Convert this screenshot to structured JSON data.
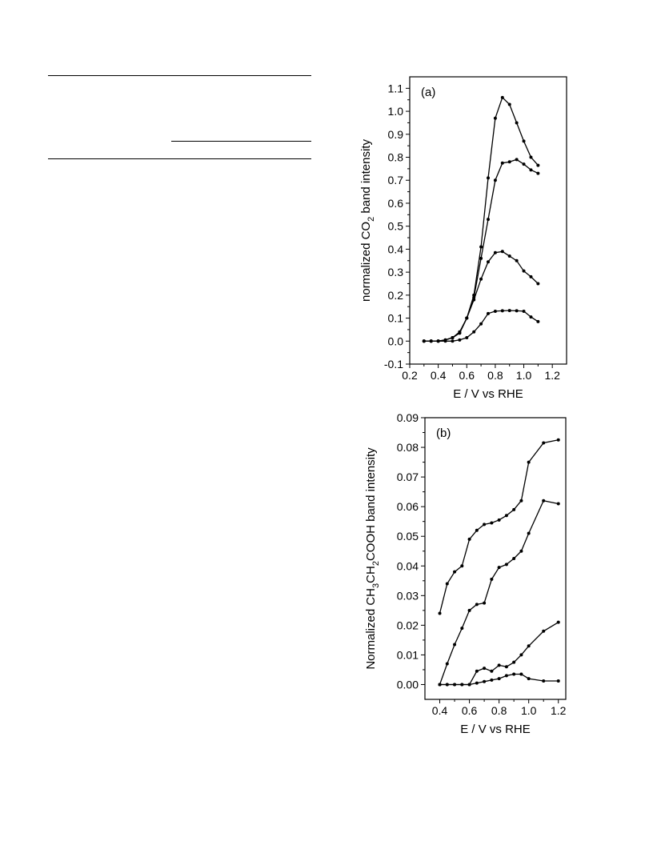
{
  "chart_data": [
    {
      "type": "line",
      "panel_label": "(a)",
      "xlabel": "E / V vs RHE",
      "ylabel_parts": [
        "normalized CO",
        "2",
        " band intensity"
      ],
      "xlim": [
        0.2,
        1.3
      ],
      "ylim": [
        -0.1,
        1.15
      ],
      "xticks": [
        0.2,
        0.4,
        0.6,
        0.8,
        1.0,
        1.2
      ],
      "xtick_labels": [
        "0.2",
        "0.4",
        "0.6",
        "0.8",
        "1.0",
        "1.2"
      ],
      "yticks": [
        -0.1,
        0.0,
        0.1,
        0.2,
        0.3,
        0.4,
        0.5,
        0.6,
        0.7,
        0.8,
        0.9,
        1.0,
        1.1
      ],
      "ytick_labels": [
        "-0.1",
        "0.0",
        "0.1",
        "0.2",
        "0.3",
        "0.4",
        "0.5",
        "0.6",
        "0.7",
        "0.8",
        "0.9",
        "1.0",
        "1.1"
      ],
      "grid": false,
      "series": [
        {
          "x": [
            0.3,
            0.35,
            0.4,
            0.45,
            0.5,
            0.55,
            0.6,
            0.65,
            0.7,
            0.75,
            0.8,
            0.85,
            0.9,
            0.95,
            1.0,
            1.05,
            1.1
          ],
          "y": [
            0.0,
            0.0,
            0.0,
            0.005,
            0.015,
            0.04,
            0.1,
            0.2,
            0.41,
            0.71,
            0.97,
            1.06,
            1.03,
            0.95,
            0.87,
            0.8,
            0.765
          ]
        },
        {
          "x": [
            0.3,
            0.35,
            0.4,
            0.45,
            0.5,
            0.55,
            0.6,
            0.65,
            0.7,
            0.75,
            0.8,
            0.85,
            0.9,
            0.95,
            1.0,
            1.05,
            1.1
          ],
          "y": [
            0.0,
            0.0,
            0.0,
            0.005,
            0.015,
            0.035,
            0.1,
            0.19,
            0.36,
            0.53,
            0.7,
            0.775,
            0.78,
            0.79,
            0.77,
            0.745,
            0.73
          ]
        },
        {
          "x": [
            0.3,
            0.35,
            0.4,
            0.45,
            0.5,
            0.55,
            0.6,
            0.65,
            0.7,
            0.75,
            0.8,
            0.85,
            0.9,
            0.95,
            1.0,
            1.05,
            1.1
          ],
          "y": [
            0.0,
            0.0,
            0.0,
            0.005,
            0.015,
            0.035,
            0.1,
            0.18,
            0.27,
            0.345,
            0.385,
            0.39,
            0.37,
            0.35,
            0.305,
            0.28,
            0.25
          ]
        },
        {
          "x": [
            0.3,
            0.35,
            0.4,
            0.45,
            0.5,
            0.55,
            0.6,
            0.65,
            0.7,
            0.75,
            0.8,
            0.85,
            0.9,
            0.95,
            1.0,
            1.05,
            1.1
          ],
          "y": [
            0.0,
            0.0,
            0.0,
            0.0,
            0.0,
            0.005,
            0.015,
            0.04,
            0.075,
            0.12,
            0.13,
            0.132,
            0.133,
            0.132,
            0.13,
            0.105,
            0.085
          ]
        }
      ]
    },
    {
      "type": "line",
      "panel_label": "(b)",
      "xlabel": "E / V vs RHE",
      "ylabel_parts": [
        "Normalized CH",
        "3",
        "CH",
        "2",
        "COOH  band intensity"
      ],
      "xlim": [
        0.3,
        1.25
      ],
      "ylim": [
        -0.005,
        0.09
      ],
      "xticks": [
        0.4,
        0.6,
        0.8,
        1.0,
        1.2
      ],
      "xtick_labels": [
        "0.4",
        "0.6",
        "0.8",
        "1.0",
        "1.2"
      ],
      "yticks": [
        0.0,
        0.01,
        0.02,
        0.03,
        0.04,
        0.05,
        0.06,
        0.07,
        0.08,
        0.09
      ],
      "ytick_labels": [
        "0.00",
        "0.01",
        "0.02",
        "0.03",
        "0.04",
        "0.05",
        "0.06",
        "0.07",
        "0.08",
        "0.09"
      ],
      "grid": false,
      "series": [
        {
          "x": [
            0.4,
            0.45,
            0.5,
            0.55,
            0.6,
            0.65,
            0.7,
            0.75,
            0.8,
            0.85,
            0.9,
            0.95,
            1.0,
            1.1,
            1.2
          ],
          "y": [
            0.024,
            0.034,
            0.038,
            0.04,
            0.049,
            0.052,
            0.054,
            0.0545,
            0.0555,
            0.057,
            0.059,
            0.062,
            0.075,
            0.0815,
            0.0825
          ]
        },
        {
          "x": [
            0.4,
            0.45,
            0.5,
            0.55,
            0.6,
            0.65,
            0.7,
            0.75,
            0.8,
            0.85,
            0.9,
            0.95,
            1.0,
            1.1,
            1.2
          ],
          "y": [
            0.0,
            0.007,
            0.0135,
            0.019,
            0.025,
            0.027,
            0.0275,
            0.0355,
            0.0395,
            0.0405,
            0.0425,
            0.045,
            0.051,
            0.062,
            0.061
          ]
        },
        {
          "x": [
            0.4,
            0.45,
            0.5,
            0.55,
            0.6,
            0.65,
            0.7,
            0.75,
            0.8,
            0.85,
            0.9,
            0.95,
            1.0,
            1.1,
            1.2
          ],
          "y": [
            0.0,
            0.0,
            0.0,
            0.0,
            0.0,
            0.0045,
            0.0055,
            0.0045,
            0.0065,
            0.006,
            0.0075,
            0.01,
            0.013,
            0.018,
            0.021
          ]
        },
        {
          "x": [
            0.4,
            0.45,
            0.5,
            0.55,
            0.6,
            0.65,
            0.7,
            0.75,
            0.8,
            0.85,
            0.9,
            0.95,
            1.0,
            1.1,
            1.2
          ],
          "y": [
            0.0,
            0.0,
            0.0,
            0.0,
            0.0,
            0.0005,
            0.001,
            0.0015,
            0.002,
            0.003,
            0.0035,
            0.0035,
            0.002,
            0.0012,
            0.0012
          ]
        }
      ]
    }
  ]
}
